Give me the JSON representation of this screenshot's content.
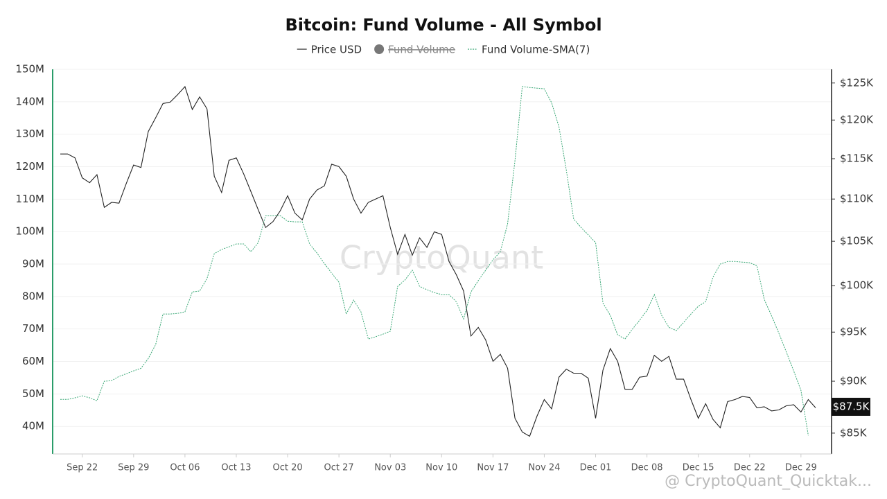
{
  "chart_data": {
    "type": "line",
    "title": "Bitcoin: Fund Volume - All Symbol",
    "watermark": "CryptoQuant",
    "footer": "@ CryptoQuant_Quicktak...",
    "categories": [
      null,
      null,
      null,
      "Sep 22",
      null,
      null,
      null,
      null,
      null,
      null,
      "Sep 29",
      null,
      null,
      null,
      null,
      null,
      null,
      "Oct 06",
      null,
      null,
      null,
      null,
      null,
      null,
      "Oct 13",
      null,
      null,
      null,
      null,
      null,
      null,
      "Oct 20",
      null,
      null,
      null,
      null,
      null,
      null,
      "Oct 27",
      null,
      null,
      null,
      null,
      null,
      null,
      "Nov 03",
      null,
      null,
      null,
      null,
      null,
      null,
      "Nov 10",
      null,
      null,
      null,
      null,
      null,
      null,
      "Nov 17",
      null,
      null,
      null,
      null,
      null,
      null,
      "Nov 24",
      null,
      null,
      null,
      null,
      null,
      null,
      "Dec 01",
      null,
      null,
      null,
      null,
      null,
      null,
      "Dec 08",
      null,
      null,
      null,
      null,
      null,
      null,
      "Dec 15",
      null,
      null,
      null,
      null,
      null,
      null,
      "Dec 22",
      null,
      null,
      null,
      null,
      null,
      null,
      "Dec 29",
      null,
      null
    ],
    "series": [
      {
        "name": "Price USD",
        "color": "#222222",
        "axis": "y2",
        "dash": false,
        "values": [
          115600,
          115600,
          115100,
          112600,
          112000,
          113000,
          109000,
          109600,
          109500,
          111900,
          114200,
          113900,
          118500,
          120300,
          122200,
          122400,
          123400,
          124500,
          121400,
          123100,
          121500,
          112800,
          110800,
          114800,
          115100,
          113100,
          110900,
          108700,
          106600,
          107300,
          108600,
          110400,
          108300,
          107500,
          110000,
          111100,
          111600,
          114300,
          114000,
          112800,
          110000,
          108300,
          109600,
          110000,
          110400,
          106600,
          103500,
          105800,
          103400,
          105400,
          104300,
          106100,
          105800,
          102700,
          101200,
          99400,
          94600,
          95500,
          94200,
          92000,
          92700,
          91300,
          86400,
          85100,
          84700,
          86600,
          88200,
          87300,
          90400,
          91200,
          90800,
          90800,
          90300,
          86400,
          91100,
          93300,
          92000,
          89200,
          89200,
          90400,
          90500,
          92600,
          92000,
          92500,
          90200,
          90200,
          88200,
          86400,
          87800,
          86300,
          85500,
          88000,
          88200,
          88500,
          88400,
          87400,
          87500,
          87100,
          87200,
          87600,
          87700,
          87000,
          88200,
          87400
        ]
      },
      {
        "name": "Fund Volume",
        "color": "#777777",
        "hidden": true
      },
      {
        "name": "Fund Volume-SMA(7)",
        "color": "#3aa876",
        "axis": "y",
        "dash": true,
        "values": [
          48.3,
          48.3,
          48.8,
          49.4,
          48.8,
          47.9,
          53.9,
          54.1,
          55.4,
          56.2,
          57.1,
          57.9,
          60.9,
          65.2,
          74.6,
          74.6,
          74.8,
          75.3,
          81.4,
          81.7,
          85.5,
          93.2,
          94.5,
          95.3,
          96.2,
          96.2,
          93.8,
          96.6,
          104.9,
          104.9,
          104.9,
          103.2,
          103.0,
          103.0,
          96.2,
          93.4,
          90.2,
          87.2,
          84.4,
          74.6,
          78.9,
          75.3,
          66.9,
          67.6,
          68.4,
          69.3,
          83.1,
          85.1,
          88.1,
          83.1,
          82.1,
          81.2,
          80.6,
          80.6,
          78.4,
          73.1,
          81.4,
          84.9,
          88.1,
          91.3,
          93.8,
          102.4,
          121.8,
          144.7,
          144.4,
          144.2,
          144.0,
          139.7,
          132.3,
          119.0,
          103.9,
          101.3,
          99.0,
          96.6,
          78.0,
          74.2,
          68.2,
          66.9,
          69.9,
          72.7,
          75.7,
          80.6,
          74.2,
          70.5,
          69.5,
          72.0,
          74.6,
          77.0,
          78.4,
          85.9,
          90.0,
          90.8,
          90.8,
          90.6,
          90.4,
          89.5,
          79.1,
          74.0,
          68.6,
          62.9,
          57.1,
          51.1,
          37.2,
          null
        ]
      }
    ],
    "ylim": [
      31.5,
      150
    ],
    "yticks": [
      {
        "value": 40,
        "label": "40M"
      },
      {
        "value": 50,
        "label": "50M"
      },
      {
        "value": 60,
        "label": "60M"
      },
      {
        "value": 70,
        "label": "70M"
      },
      {
        "value": 80,
        "label": "80M"
      },
      {
        "value": 90,
        "label": "90M"
      },
      {
        "value": 100,
        "label": "100M"
      },
      {
        "value": 110,
        "label": "110M"
      },
      {
        "value": 120,
        "label": "120M"
      },
      {
        "value": 130,
        "label": "130M"
      },
      {
        "value": 140,
        "label": "140M"
      },
      {
        "value": 150,
        "label": "150M"
      }
    ],
    "y2lim": [
      83070,
      126900
    ],
    "y2log": true,
    "y2ticks": [
      {
        "value": 85000,
        "label": "$85K"
      },
      {
        "value": 90000,
        "label": "$90K"
      },
      {
        "value": 95000,
        "label": "$95K"
      },
      {
        "value": 100000,
        "label": "$100K"
      },
      {
        "value": 105000,
        "label": "$105K"
      },
      {
        "value": 110000,
        "label": "$110K"
      },
      {
        "value": 115000,
        "label": "$115K"
      },
      {
        "value": 120000,
        "label": "$120K"
      },
      {
        "value": 125000,
        "label": "$125K"
      }
    ],
    "annotations": [
      {
        "value": 87500,
        "label": "$87.5K"
      }
    ],
    "grid": true,
    "legend": "top"
  }
}
